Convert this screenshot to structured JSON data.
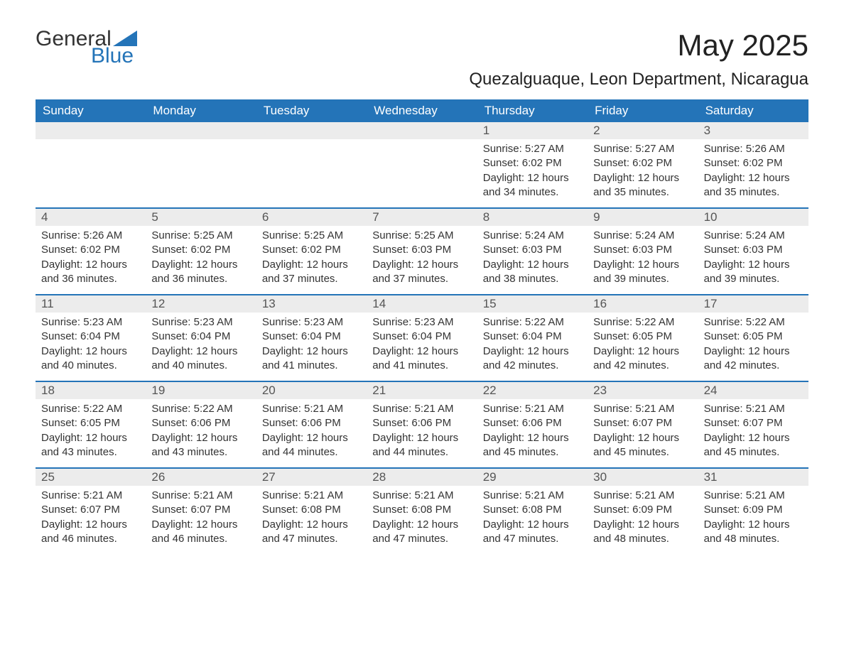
{
  "logo": {
    "text_general": "General",
    "text_blue": "Blue",
    "tri_color": "#2474b8"
  },
  "header": {
    "month_title": "May 2025",
    "location": "Quezalguaque, Leon Department, Nicaragua"
  },
  "colors": {
    "header_bg": "#2474b8",
    "header_text": "#ffffff",
    "row_divider": "#2474b8",
    "day_header_bg": "#ececec",
    "day_header_text": "#555555",
    "body_text": "#333333",
    "page_bg": "#ffffff"
  },
  "typography": {
    "month_title_fontsize": 42,
    "location_fontsize": 24,
    "weekday_fontsize": 17,
    "daynum_fontsize": 17,
    "body_fontsize": 15
  },
  "weekdays": [
    "Sunday",
    "Monday",
    "Tuesday",
    "Wednesday",
    "Thursday",
    "Friday",
    "Saturday"
  ],
  "weeks": [
    [
      {
        "day": "",
        "sunrise": "",
        "sunset": "",
        "daylight1": "",
        "daylight2": ""
      },
      {
        "day": "",
        "sunrise": "",
        "sunset": "",
        "daylight1": "",
        "daylight2": ""
      },
      {
        "day": "",
        "sunrise": "",
        "sunset": "",
        "daylight1": "",
        "daylight2": ""
      },
      {
        "day": "",
        "sunrise": "",
        "sunset": "",
        "daylight1": "",
        "daylight2": ""
      },
      {
        "day": "1",
        "sunrise": "Sunrise: 5:27 AM",
        "sunset": "Sunset: 6:02 PM",
        "daylight1": "Daylight: 12 hours",
        "daylight2": "and 34 minutes."
      },
      {
        "day": "2",
        "sunrise": "Sunrise: 5:27 AM",
        "sunset": "Sunset: 6:02 PM",
        "daylight1": "Daylight: 12 hours",
        "daylight2": "and 35 minutes."
      },
      {
        "day": "3",
        "sunrise": "Sunrise: 5:26 AM",
        "sunset": "Sunset: 6:02 PM",
        "daylight1": "Daylight: 12 hours",
        "daylight2": "and 35 minutes."
      }
    ],
    [
      {
        "day": "4",
        "sunrise": "Sunrise: 5:26 AM",
        "sunset": "Sunset: 6:02 PM",
        "daylight1": "Daylight: 12 hours",
        "daylight2": "and 36 minutes."
      },
      {
        "day": "5",
        "sunrise": "Sunrise: 5:25 AM",
        "sunset": "Sunset: 6:02 PM",
        "daylight1": "Daylight: 12 hours",
        "daylight2": "and 36 minutes."
      },
      {
        "day": "6",
        "sunrise": "Sunrise: 5:25 AM",
        "sunset": "Sunset: 6:02 PM",
        "daylight1": "Daylight: 12 hours",
        "daylight2": "and 37 minutes."
      },
      {
        "day": "7",
        "sunrise": "Sunrise: 5:25 AM",
        "sunset": "Sunset: 6:03 PM",
        "daylight1": "Daylight: 12 hours",
        "daylight2": "and 37 minutes."
      },
      {
        "day": "8",
        "sunrise": "Sunrise: 5:24 AM",
        "sunset": "Sunset: 6:03 PM",
        "daylight1": "Daylight: 12 hours",
        "daylight2": "and 38 minutes."
      },
      {
        "day": "9",
        "sunrise": "Sunrise: 5:24 AM",
        "sunset": "Sunset: 6:03 PM",
        "daylight1": "Daylight: 12 hours",
        "daylight2": "and 39 minutes."
      },
      {
        "day": "10",
        "sunrise": "Sunrise: 5:24 AM",
        "sunset": "Sunset: 6:03 PM",
        "daylight1": "Daylight: 12 hours",
        "daylight2": "and 39 minutes."
      }
    ],
    [
      {
        "day": "11",
        "sunrise": "Sunrise: 5:23 AM",
        "sunset": "Sunset: 6:04 PM",
        "daylight1": "Daylight: 12 hours",
        "daylight2": "and 40 minutes."
      },
      {
        "day": "12",
        "sunrise": "Sunrise: 5:23 AM",
        "sunset": "Sunset: 6:04 PM",
        "daylight1": "Daylight: 12 hours",
        "daylight2": "and 40 minutes."
      },
      {
        "day": "13",
        "sunrise": "Sunrise: 5:23 AM",
        "sunset": "Sunset: 6:04 PM",
        "daylight1": "Daylight: 12 hours",
        "daylight2": "and 41 minutes."
      },
      {
        "day": "14",
        "sunrise": "Sunrise: 5:23 AM",
        "sunset": "Sunset: 6:04 PM",
        "daylight1": "Daylight: 12 hours",
        "daylight2": "and 41 minutes."
      },
      {
        "day": "15",
        "sunrise": "Sunrise: 5:22 AM",
        "sunset": "Sunset: 6:04 PM",
        "daylight1": "Daylight: 12 hours",
        "daylight2": "and 42 minutes."
      },
      {
        "day": "16",
        "sunrise": "Sunrise: 5:22 AM",
        "sunset": "Sunset: 6:05 PM",
        "daylight1": "Daylight: 12 hours",
        "daylight2": "and 42 minutes."
      },
      {
        "day": "17",
        "sunrise": "Sunrise: 5:22 AM",
        "sunset": "Sunset: 6:05 PM",
        "daylight1": "Daylight: 12 hours",
        "daylight2": "and 42 minutes."
      }
    ],
    [
      {
        "day": "18",
        "sunrise": "Sunrise: 5:22 AM",
        "sunset": "Sunset: 6:05 PM",
        "daylight1": "Daylight: 12 hours",
        "daylight2": "and 43 minutes."
      },
      {
        "day": "19",
        "sunrise": "Sunrise: 5:22 AM",
        "sunset": "Sunset: 6:06 PM",
        "daylight1": "Daylight: 12 hours",
        "daylight2": "and 43 minutes."
      },
      {
        "day": "20",
        "sunrise": "Sunrise: 5:21 AM",
        "sunset": "Sunset: 6:06 PM",
        "daylight1": "Daylight: 12 hours",
        "daylight2": "and 44 minutes."
      },
      {
        "day": "21",
        "sunrise": "Sunrise: 5:21 AM",
        "sunset": "Sunset: 6:06 PM",
        "daylight1": "Daylight: 12 hours",
        "daylight2": "and 44 minutes."
      },
      {
        "day": "22",
        "sunrise": "Sunrise: 5:21 AM",
        "sunset": "Sunset: 6:06 PM",
        "daylight1": "Daylight: 12 hours",
        "daylight2": "and 45 minutes."
      },
      {
        "day": "23",
        "sunrise": "Sunrise: 5:21 AM",
        "sunset": "Sunset: 6:07 PM",
        "daylight1": "Daylight: 12 hours",
        "daylight2": "and 45 minutes."
      },
      {
        "day": "24",
        "sunrise": "Sunrise: 5:21 AM",
        "sunset": "Sunset: 6:07 PM",
        "daylight1": "Daylight: 12 hours",
        "daylight2": "and 45 minutes."
      }
    ],
    [
      {
        "day": "25",
        "sunrise": "Sunrise: 5:21 AM",
        "sunset": "Sunset: 6:07 PM",
        "daylight1": "Daylight: 12 hours",
        "daylight2": "and 46 minutes."
      },
      {
        "day": "26",
        "sunrise": "Sunrise: 5:21 AM",
        "sunset": "Sunset: 6:07 PM",
        "daylight1": "Daylight: 12 hours",
        "daylight2": "and 46 minutes."
      },
      {
        "day": "27",
        "sunrise": "Sunrise: 5:21 AM",
        "sunset": "Sunset: 6:08 PM",
        "daylight1": "Daylight: 12 hours",
        "daylight2": "and 47 minutes."
      },
      {
        "day": "28",
        "sunrise": "Sunrise: 5:21 AM",
        "sunset": "Sunset: 6:08 PM",
        "daylight1": "Daylight: 12 hours",
        "daylight2": "and 47 minutes."
      },
      {
        "day": "29",
        "sunrise": "Sunrise: 5:21 AM",
        "sunset": "Sunset: 6:08 PM",
        "daylight1": "Daylight: 12 hours",
        "daylight2": "and 47 minutes."
      },
      {
        "day": "30",
        "sunrise": "Sunrise: 5:21 AM",
        "sunset": "Sunset: 6:09 PM",
        "daylight1": "Daylight: 12 hours",
        "daylight2": "and 48 minutes."
      },
      {
        "day": "31",
        "sunrise": "Sunrise: 5:21 AM",
        "sunset": "Sunset: 6:09 PM",
        "daylight1": "Daylight: 12 hours",
        "daylight2": "and 48 minutes."
      }
    ]
  ]
}
